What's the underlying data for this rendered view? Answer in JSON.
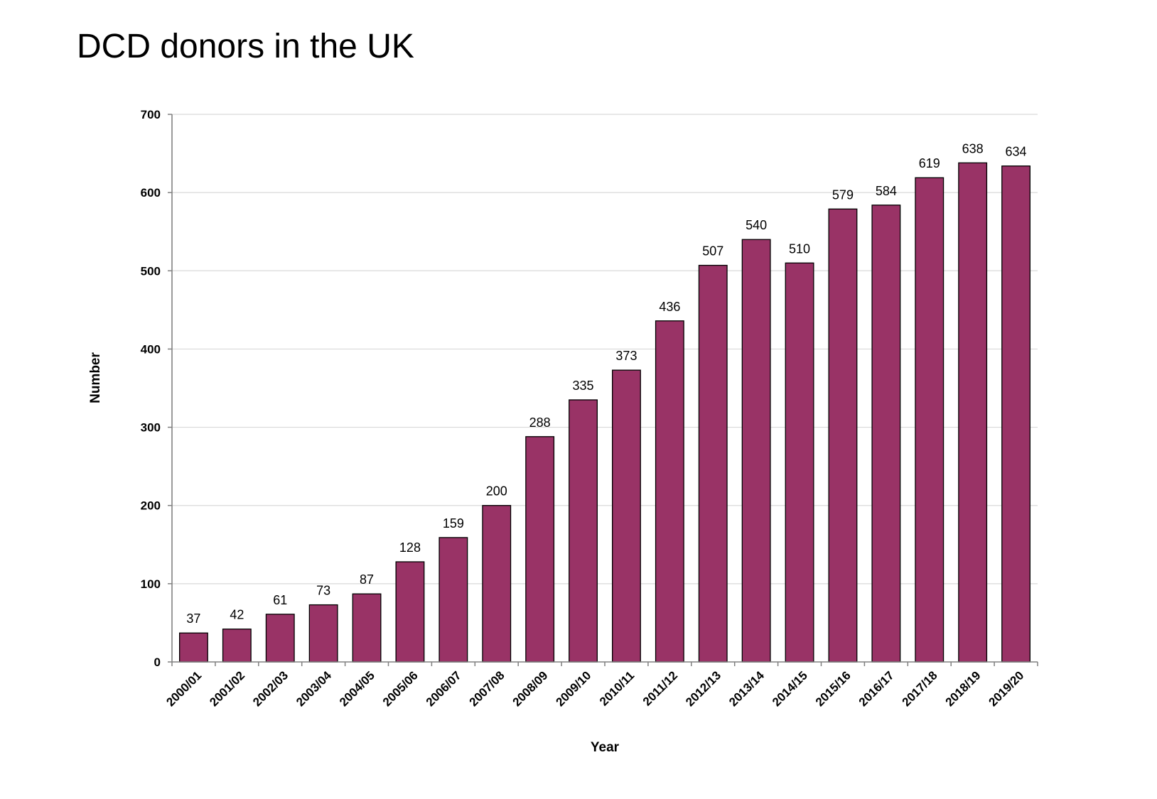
{
  "chart_data": {
    "type": "bar",
    "title": "DCD donors in the UK",
    "xlabel": "Year",
    "ylabel": "Number",
    "ylim": [
      0,
      700
    ],
    "yticks": [
      0,
      100,
      200,
      300,
      400,
      500,
      600,
      700
    ],
    "grid": true,
    "legend": "none",
    "categories": [
      "2000/01",
      "2001/02",
      "2002/03",
      "2003/04",
      "2004/05",
      "2005/06",
      "2006/07",
      "2007/08",
      "2008/09",
      "2009/10",
      "2010/11",
      "2011/12",
      "2012/13",
      "2013/14",
      "2014/15",
      "2015/16",
      "2016/17",
      "2017/18",
      "2018/19",
      "2019/20"
    ],
    "series": [
      {
        "name": "DCD donors",
        "values": [
          37,
          42,
          61,
          73,
          87,
          128,
          159,
          200,
          288,
          335,
          373,
          436,
          507,
          540,
          510,
          579,
          584,
          619,
          638,
          634
        ]
      }
    ]
  },
  "colors": {
    "bar_fill": "#993366",
    "bar_stroke": "#000000",
    "grid": "#d9d9d9",
    "axis": "#808080"
  }
}
